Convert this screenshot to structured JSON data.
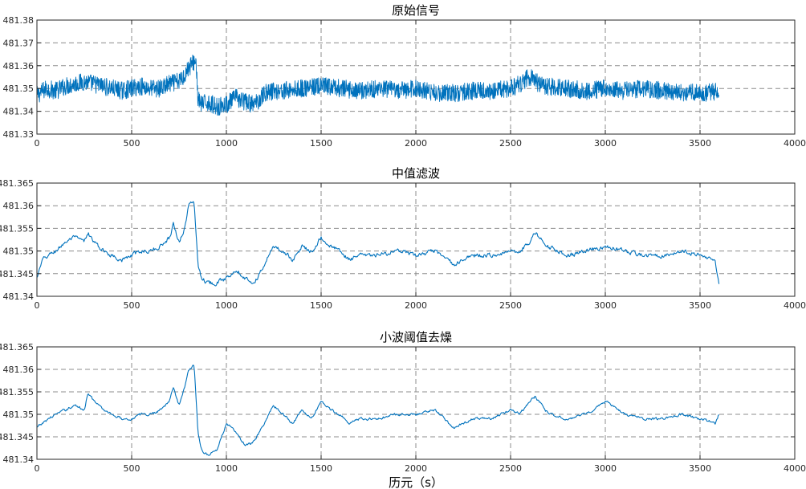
{
  "chart_data": [
    {
      "type": "line",
      "title": "原始信号",
      "xlabel": "",
      "ylabel": "",
      "xlim": [
        0,
        4000
      ],
      "ylim": [
        481.33,
        481.38
      ],
      "xticks": [
        "0",
        "500",
        "1000",
        "1500",
        "2000",
        "2500",
        "3000",
        "3500",
        "4000"
      ],
      "yticks": [
        "481.33",
        "481.34",
        "481.35",
        "481.36",
        "481.37",
        "481.38"
      ],
      "grid": true,
      "series_color": "#0072BD",
      "x": [
        0,
        50,
        100,
        150,
        200,
        250,
        300,
        350,
        400,
        450,
        500,
        550,
        600,
        650,
        700,
        750,
        780,
        800,
        820,
        840,
        850,
        870,
        900,
        950,
        1000,
        1050,
        1100,
        1150,
        1200,
        1250,
        1300,
        1400,
        1500,
        1600,
        1700,
        1800,
        1900,
        2000,
        2100,
        2200,
        2300,
        2400,
        2500,
        2550,
        2600,
        2650,
        2700,
        2800,
        2900,
        3000,
        3100,
        3200,
        3300,
        3400,
        3500,
        3600
      ],
      "values": [
        481.347,
        481.35,
        481.349,
        481.351,
        481.352,
        481.353,
        481.352,
        481.351,
        481.35,
        481.349,
        481.35,
        481.351,
        481.35,
        481.35,
        481.352,
        481.353,
        481.356,
        481.359,
        481.361,
        481.362,
        481.345,
        481.343,
        481.344,
        481.342,
        481.343,
        481.346,
        481.344,
        481.343,
        481.348,
        481.349,
        481.349,
        481.35,
        481.351,
        481.35,
        481.349,
        481.35,
        481.349,
        481.35,
        481.348,
        481.348,
        481.349,
        481.349,
        481.35,
        481.352,
        481.355,
        481.352,
        481.351,
        481.35,
        481.349,
        481.35,
        481.349,
        481.35,
        481.349,
        481.348,
        481.348,
        481.349
      ],
      "noise_amplitude": 0.004
    },
    {
      "type": "line",
      "title": "中值滤波",
      "xlabel": "",
      "ylabel": "",
      "xlim": [
        0,
        4000
      ],
      "ylim": [
        481.34,
        481.365
      ],
      "xticks": [
        "0",
        "500",
        "1000",
        "1500",
        "2000",
        "2500",
        "3000",
        "3500",
        "4000"
      ],
      "yticks": [
        "481.34",
        "481.345",
        "481.35",
        "481.355",
        "481.36",
        "481.365"
      ],
      "grid": true,
      "series_color": "#0072BD",
      "x": [
        0,
        30,
        60,
        100,
        150,
        200,
        250,
        270,
        300,
        350,
        400,
        450,
        500,
        550,
        600,
        650,
        700,
        720,
        750,
        780,
        800,
        830,
        850,
        870,
        900,
        950,
        1000,
        1050,
        1100,
        1150,
        1200,
        1250,
        1300,
        1350,
        1400,
        1450,
        1500,
        1550,
        1600,
        1650,
        1700,
        1800,
        1900,
        2000,
        2100,
        2200,
        2300,
        2400,
        2500,
        2550,
        2600,
        2630,
        2700,
        2800,
        2900,
        3000,
        3100,
        3200,
        3300,
        3400,
        3500,
        3580,
        3600
      ],
      "values": [
        481.344,
        481.348,
        481.349,
        481.35,
        481.352,
        481.353,
        481.352,
        481.354,
        481.352,
        481.35,
        481.349,
        481.348,
        481.349,
        481.35,
        481.35,
        481.351,
        481.353,
        481.356,
        481.352,
        481.355,
        481.36,
        481.361,
        481.347,
        481.344,
        481.343,
        481.343,
        481.344,
        481.346,
        481.344,
        481.343,
        481.347,
        481.351,
        481.35,
        481.348,
        481.351,
        481.35,
        481.353,
        481.351,
        481.35,
        481.348,
        481.349,
        481.349,
        481.35,
        481.349,
        481.35,
        481.347,
        481.349,
        481.349,
        481.35,
        481.35,
        481.352,
        481.354,
        481.351,
        481.349,
        481.35,
        481.351,
        481.35,
        481.349,
        481.349,
        481.35,
        481.349,
        481.348,
        481.343
      ],
      "noise_amplitude": 0.0008
    },
    {
      "type": "line",
      "title": "小波阈值去燥",
      "xlabel": "历元（s）",
      "ylabel": "",
      "xlim": [
        0,
        4000
      ],
      "ylim": [
        481.34,
        481.365
      ],
      "xticks": [
        "0",
        "500",
        "1000",
        "1500",
        "2000",
        "2500",
        "3000",
        "3500",
        "4000"
      ],
      "yticks": [
        "481.34",
        "481.345",
        "481.35",
        "481.355",
        "481.36",
        "481.365"
      ],
      "grid": true,
      "series_color": "#0072BD",
      "x": [
        0,
        30,
        60,
        100,
        150,
        200,
        250,
        270,
        300,
        350,
        400,
        450,
        500,
        550,
        600,
        650,
        700,
        720,
        750,
        780,
        800,
        830,
        850,
        870,
        900,
        950,
        1000,
        1050,
        1100,
        1150,
        1200,
        1250,
        1300,
        1350,
        1400,
        1450,
        1500,
        1550,
        1600,
        1650,
        1700,
        1800,
        1900,
        2000,
        2100,
        2200,
        2300,
        2400,
        2500,
        2550,
        2600,
        2630,
        2700,
        2800,
        2900,
        3000,
        3100,
        3200,
        3300,
        3400,
        3500,
        3580,
        3600
      ],
      "values": [
        481.347,
        481.348,
        481.349,
        481.35,
        481.351,
        481.352,
        481.351,
        481.355,
        481.353,
        481.351,
        481.35,
        481.349,
        481.349,
        481.35,
        481.35,
        481.351,
        481.353,
        481.356,
        481.352,
        481.356,
        481.36,
        481.361,
        481.346,
        481.342,
        481.341,
        481.342,
        481.348,
        481.346,
        481.343,
        481.344,
        481.348,
        481.352,
        481.35,
        481.348,
        481.351,
        481.349,
        481.353,
        481.351,
        481.35,
        481.348,
        481.349,
        481.349,
        481.35,
        481.35,
        481.351,
        481.347,
        481.349,
        481.349,
        481.351,
        481.35,
        481.353,
        481.354,
        481.35,
        481.349,
        481.35,
        481.353,
        481.35,
        481.349,
        481.349,
        481.35,
        481.349,
        481.348,
        481.35
      ],
      "noise_amplitude": 0.0005
    }
  ]
}
